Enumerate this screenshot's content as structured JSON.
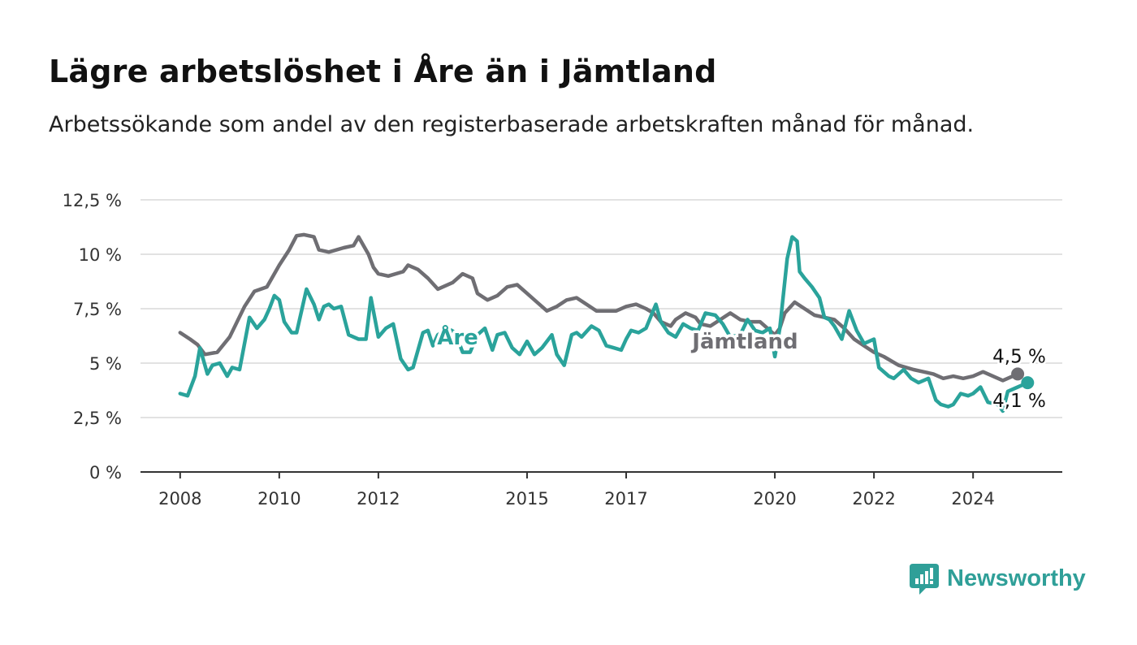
{
  "header": {
    "title": "Lägre arbetslöshet i Åre än i Jämtland",
    "subtitle": "Arbetssökande som andel av den registerbaserade arbetskraften månad för månad."
  },
  "brand": {
    "name": "Newsworthy",
    "icon": "newsworthy-logo-icon",
    "color": "#2f9f98"
  },
  "chart_data": {
    "type": "line",
    "title": "Lägre arbetslöshet i Åre än i Jämtland",
    "subtitle": "Arbetssökande som andel av den registerbaserade arbetskraften månad för månad.",
    "ylim": [
      0,
      12.5
    ],
    "yticks": [
      0,
      2.5,
      5,
      7.5,
      10,
      12.5
    ],
    "ytick_labels": [
      "0 %",
      "2,5 %",
      "5 %",
      "7,5 %",
      "10 %",
      "12,5 %"
    ],
    "xlim": [
      2007.2,
      2025.8
    ],
    "xticks": [
      2008,
      2010,
      2012,
      2015,
      2017,
      2020,
      2022,
      2024
    ],
    "xtick_labels": [
      "2008",
      "2010",
      "2012",
      "2015",
      "2017",
      "2020",
      "2022",
      "2024"
    ],
    "grid": true,
    "series": [
      {
        "name": "Jämtland",
        "color": "#6f6e73",
        "end_label": "4,5 %",
        "points": [
          [
            2008.0,
            6.4
          ],
          [
            2008.2,
            6.1
          ],
          [
            2008.35,
            5.85
          ],
          [
            2008.5,
            5.4
          ],
          [
            2008.75,
            5.5
          ],
          [
            2009.0,
            6.2
          ],
          [
            2009.3,
            7.6
          ],
          [
            2009.5,
            8.3
          ],
          [
            2009.75,
            8.5
          ],
          [
            2010.0,
            9.5
          ],
          [
            2010.2,
            10.2
          ],
          [
            2010.35,
            10.85
          ],
          [
            2010.5,
            10.9
          ],
          [
            2010.7,
            10.8
          ],
          [
            2010.8,
            10.2
          ],
          [
            2011.0,
            10.1
          ],
          [
            2011.3,
            10.3
          ],
          [
            2011.5,
            10.4
          ],
          [
            2011.6,
            10.8
          ],
          [
            2011.8,
            10.0
          ],
          [
            2011.9,
            9.4
          ],
          [
            2012.0,
            9.1
          ],
          [
            2012.2,
            9.0
          ],
          [
            2012.5,
            9.2
          ],
          [
            2012.6,
            9.5
          ],
          [
            2012.8,
            9.3
          ],
          [
            2013.0,
            8.9
          ],
          [
            2013.2,
            8.4
          ],
          [
            2013.5,
            8.7
          ],
          [
            2013.7,
            9.1
          ],
          [
            2013.9,
            8.9
          ],
          [
            2014.0,
            8.2
          ],
          [
            2014.2,
            7.9
          ],
          [
            2014.4,
            8.1
          ],
          [
            2014.6,
            8.5
          ],
          [
            2014.8,
            8.6
          ],
          [
            2015.0,
            8.2
          ],
          [
            2015.2,
            7.8
          ],
          [
            2015.4,
            7.4
          ],
          [
            2015.6,
            7.6
          ],
          [
            2015.8,
            7.9
          ],
          [
            2016.0,
            8.0
          ],
          [
            2016.2,
            7.7
          ],
          [
            2016.4,
            7.4
          ],
          [
            2016.6,
            7.4
          ],
          [
            2016.8,
            7.4
          ],
          [
            2017.0,
            7.6
          ],
          [
            2017.2,
            7.7
          ],
          [
            2017.4,
            7.5
          ],
          [
            2017.55,
            7.3
          ],
          [
            2017.7,
            6.9
          ],
          [
            2017.9,
            6.7
          ],
          [
            2018.0,
            7.0
          ],
          [
            2018.2,
            7.3
          ],
          [
            2018.4,
            7.1
          ],
          [
            2018.5,
            6.8
          ],
          [
            2018.7,
            6.7
          ],
          [
            2018.9,
            7.0
          ],
          [
            2019.1,
            7.3
          ],
          [
            2019.3,
            7.0
          ],
          [
            2019.5,
            6.9
          ],
          [
            2019.7,
            6.9
          ],
          [
            2019.9,
            6.5
          ],
          [
            2020.0,
            6.3
          ],
          [
            2020.1,
            6.6
          ],
          [
            2020.2,
            7.3
          ],
          [
            2020.4,
            7.8
          ],
          [
            2020.6,
            7.5
          ],
          [
            2020.8,
            7.2
          ],
          [
            2021.0,
            7.1
          ],
          [
            2021.2,
            7.0
          ],
          [
            2021.4,
            6.6
          ],
          [
            2021.6,
            6.1
          ],
          [
            2021.8,
            5.8
          ],
          [
            2022.0,
            5.5
          ],
          [
            2022.2,
            5.3
          ],
          [
            2022.5,
            4.9
          ],
          [
            2022.8,
            4.7
          ],
          [
            2023.0,
            4.6
          ],
          [
            2023.2,
            4.5
          ],
          [
            2023.4,
            4.3
          ],
          [
            2023.6,
            4.4
          ],
          [
            2023.8,
            4.3
          ],
          [
            2024.0,
            4.4
          ],
          [
            2024.2,
            4.6
          ],
          [
            2024.4,
            4.4
          ],
          [
            2024.6,
            4.2
          ],
          [
            2024.8,
            4.4
          ],
          [
            2024.9,
            4.5
          ]
        ]
      },
      {
        "name": "Åre",
        "color": "#2aa39b",
        "end_label": "4,1 %",
        "points": [
          [
            2008.0,
            3.6
          ],
          [
            2008.15,
            3.5
          ],
          [
            2008.3,
            4.4
          ],
          [
            2008.4,
            5.7
          ],
          [
            2008.55,
            4.5
          ],
          [
            2008.65,
            4.9
          ],
          [
            2008.8,
            5.0
          ],
          [
            2008.95,
            4.4
          ],
          [
            2009.05,
            4.8
          ],
          [
            2009.2,
            4.7
          ],
          [
            2009.4,
            7.1
          ],
          [
            2009.55,
            6.6
          ],
          [
            2009.7,
            7.0
          ],
          [
            2009.8,
            7.5
          ],
          [
            2009.9,
            8.1
          ],
          [
            2010.0,
            7.9
          ],
          [
            2010.1,
            6.9
          ],
          [
            2010.25,
            6.4
          ],
          [
            2010.35,
            6.4
          ],
          [
            2010.55,
            8.4
          ],
          [
            2010.7,
            7.7
          ],
          [
            2010.8,
            7.0
          ],
          [
            2010.9,
            7.6
          ],
          [
            2011.0,
            7.7
          ],
          [
            2011.1,
            7.5
          ],
          [
            2011.25,
            7.6
          ],
          [
            2011.4,
            6.3
          ],
          [
            2011.6,
            6.1
          ],
          [
            2011.75,
            6.1
          ],
          [
            2011.85,
            8.0
          ],
          [
            2012.0,
            6.2
          ],
          [
            2012.15,
            6.6
          ],
          [
            2012.3,
            6.8
          ],
          [
            2012.45,
            5.2
          ],
          [
            2012.6,
            4.7
          ],
          [
            2012.7,
            4.8
          ],
          [
            2012.9,
            6.4
          ],
          [
            2013.0,
            6.5
          ],
          [
            2013.1,
            5.8
          ],
          [
            2013.2,
            6.3
          ],
          [
            2013.4,
            6.6
          ],
          [
            2013.55,
            6.4
          ],
          [
            2013.7,
            5.5
          ],
          [
            2013.85,
            5.5
          ],
          [
            2014.0,
            6.3
          ],
          [
            2014.15,
            6.6
          ],
          [
            2014.3,
            5.6
          ],
          [
            2014.4,
            6.3
          ],
          [
            2014.55,
            6.4
          ],
          [
            2014.7,
            5.7
          ],
          [
            2014.85,
            5.4
          ],
          [
            2015.0,
            6.0
          ],
          [
            2015.15,
            5.4
          ],
          [
            2015.3,
            5.7
          ],
          [
            2015.5,
            6.3
          ],
          [
            2015.6,
            5.4
          ],
          [
            2015.75,
            4.9
          ],
          [
            2015.9,
            6.3
          ],
          [
            2016.0,
            6.4
          ],
          [
            2016.1,
            6.2
          ],
          [
            2016.3,
            6.7
          ],
          [
            2016.45,
            6.5
          ],
          [
            2016.6,
            5.8
          ],
          [
            2016.75,
            5.7
          ],
          [
            2016.9,
            5.6
          ],
          [
            2017.0,
            6.1
          ],
          [
            2017.1,
            6.5
          ],
          [
            2017.25,
            6.4
          ],
          [
            2017.4,
            6.6
          ],
          [
            2017.6,
            7.7
          ],
          [
            2017.7,
            6.9
          ],
          [
            2017.85,
            6.4
          ],
          [
            2018.0,
            6.2
          ],
          [
            2018.15,
            6.8
          ],
          [
            2018.3,
            6.6
          ],
          [
            2018.45,
            6.5
          ],
          [
            2018.6,
            7.3
          ],
          [
            2018.8,
            7.2
          ],
          [
            2018.95,
            6.8
          ],
          [
            2019.1,
            6.2
          ],
          [
            2019.3,
            6.3
          ],
          [
            2019.45,
            7.0
          ],
          [
            2019.6,
            6.5
          ],
          [
            2019.75,
            6.4
          ],
          [
            2019.9,
            6.6
          ],
          [
            2020.0,
            5.3
          ],
          [
            2020.1,
            6.6
          ],
          [
            2020.25,
            9.8
          ],
          [
            2020.35,
            10.8
          ],
          [
            2020.45,
            10.6
          ],
          [
            2020.5,
            9.2
          ],
          [
            2020.6,
            8.9
          ],
          [
            2020.75,
            8.5
          ],
          [
            2020.9,
            8.0
          ],
          [
            2021.0,
            7.1
          ],
          [
            2021.1,
            7.0
          ],
          [
            2021.2,
            6.7
          ],
          [
            2021.35,
            6.1
          ],
          [
            2021.5,
            7.4
          ],
          [
            2021.65,
            6.5
          ],
          [
            2021.8,
            5.9
          ],
          [
            2022.0,
            6.1
          ],
          [
            2022.1,
            4.8
          ],
          [
            2022.3,
            4.4
          ],
          [
            2022.4,
            4.3
          ],
          [
            2022.6,
            4.7
          ],
          [
            2022.75,
            4.3
          ],
          [
            2022.9,
            4.1
          ],
          [
            2023.1,
            4.3
          ],
          [
            2023.25,
            3.3
          ],
          [
            2023.35,
            3.1
          ],
          [
            2023.5,
            3.0
          ],
          [
            2023.6,
            3.1
          ],
          [
            2023.75,
            3.6
          ],
          [
            2023.9,
            3.5
          ],
          [
            2024.0,
            3.6
          ],
          [
            2024.15,
            3.9
          ],
          [
            2024.3,
            3.2
          ],
          [
            2024.5,
            3.1
          ],
          [
            2024.6,
            2.8
          ],
          [
            2024.7,
            3.7
          ],
          [
            2024.9,
            3.9
          ],
          [
            2025.0,
            4.0
          ],
          [
            2025.1,
            4.1
          ]
        ]
      }
    ],
    "annotations": [
      {
        "text": "Åre",
        "series": "Åre",
        "x": 2013.6,
        "y": 6.2
      },
      {
        "text": "Jämtland",
        "series": "Jämtland",
        "x": 2019.4,
        "y": 6.0
      }
    ]
  }
}
